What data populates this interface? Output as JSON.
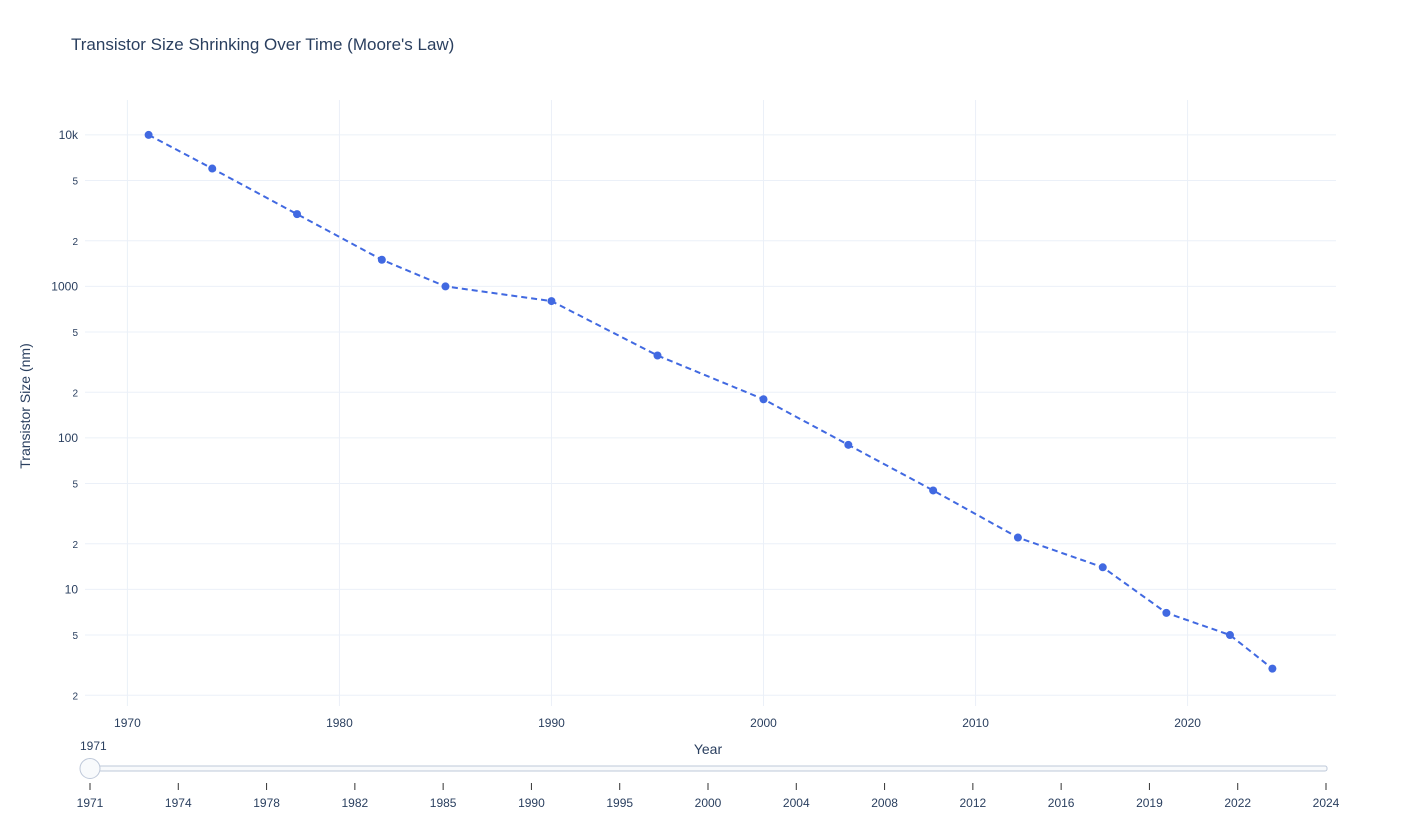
{
  "chart_data": {
    "type": "line",
    "title": "Transistor Size Shrinking Over Time (Moore's Law)",
    "xlabel": "Year",
    "ylabel": "Transistor Size (nm)",
    "xlim": [
      1968,
      2027
    ],
    "ylim_log": [
      1.7,
      17000
    ],
    "y_scale": "log",
    "grid": true,
    "x_ticks": [
      "1970",
      "1980",
      "1990",
      "2000",
      "2010",
      "2020"
    ],
    "y_major_ticks": [
      {
        "value": 10000,
        "label": "10k"
      },
      {
        "value": 1000,
        "label": "1000"
      },
      {
        "value": 100,
        "label": "100"
      },
      {
        "value": 10,
        "label": "10"
      }
    ],
    "y_minor_ticks": [
      {
        "value": 5000,
        "label": "5"
      },
      {
        "value": 2000,
        "label": "2"
      },
      {
        "value": 500,
        "label": "5"
      },
      {
        "value": 200,
        "label": "2"
      },
      {
        "value": 50,
        "label": "5"
      },
      {
        "value": 20,
        "label": "2"
      },
      {
        "value": 5,
        "label": "5"
      },
      {
        "value": 2,
        "label": "2"
      }
    ],
    "series": [
      {
        "color": "#4169e1",
        "line_style": "dashed",
        "x": [
          1971,
          1974,
          1978,
          1982,
          1985,
          1990,
          1995,
          2000,
          2004,
          2008,
          2012,
          2016,
          2019,
          2022,
          2024
        ],
        "y": [
          10000,
          6000,
          3000,
          1500,
          1000,
          800,
          350,
          180,
          90,
          45,
          22,
          14,
          7,
          5,
          3
        ]
      }
    ]
  },
  "slider": {
    "current_label": "1971",
    "steps": [
      "1971",
      "1974",
      "1978",
      "1982",
      "1985",
      "1990",
      "1995",
      "2000",
      "2004",
      "2008",
      "2012",
      "2016",
      "2019",
      "2022",
      "2024"
    ]
  }
}
